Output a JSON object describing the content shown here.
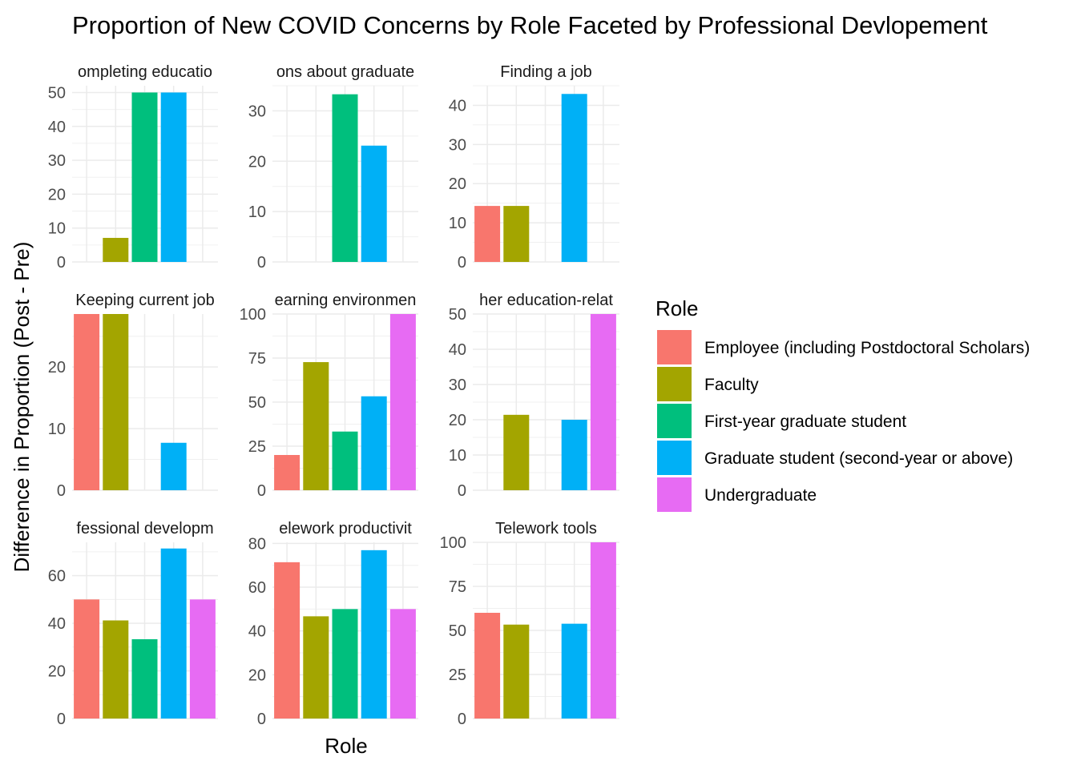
{
  "chart_data": {
    "type": "bar",
    "title": "Proportion of New COVID Concerns by Role Faceted by Professional Devlopement",
    "xlabel": "Role",
    "ylabel": "Difference in Proportion (Post - Pre)",
    "legend": {
      "title": "Role",
      "placement": "right",
      "entries": [
        {
          "name": "Employee (including Postdoctoral Scholars)",
          "color": "#F8766D"
        },
        {
          "name": "Faculty",
          "color": "#A3A500"
        },
        {
          "name": "First-year graduate student",
          "color": "#00BF7D"
        },
        {
          "name": "Graduate student (second-year or above)",
          "color": "#00B0F6"
        },
        {
          "name": "Undergraduate",
          "color": "#E76BF3"
        }
      ]
    },
    "categories": [
      "Employee (including Postdoctoral Scholars)",
      "Faculty",
      "First-year graduate student",
      "Graduate student (second-year or above)",
      "Undergraduate"
    ],
    "grid": true,
    "facets": [
      {
        "strip": "ompleting educatio",
        "ylim": [
          0,
          52
        ],
        "ticks": [
          0,
          10,
          20,
          30,
          40,
          50
        ],
        "values": [
          null,
          7.1,
          50,
          50,
          null
        ]
      },
      {
        "strip": "ons about graduate",
        "ylim": [
          0,
          35
        ],
        "ticks": [
          0,
          10,
          20,
          30
        ],
        "values": [
          null,
          null,
          33.3,
          23.1,
          null
        ]
      },
      {
        "strip": "Finding a job",
        "ylim": [
          0,
          45
        ],
        "ticks": [
          0,
          10,
          20,
          30,
          40
        ],
        "values": [
          14.3,
          14.3,
          null,
          42.9,
          null
        ]
      },
      {
        "strip": "Keeping current job",
        "ylim": [
          0,
          28.6
        ],
        "ticks": [
          0,
          10,
          20
        ],
        "values": [
          28.6,
          28.6,
          null,
          7.7,
          null
        ]
      },
      {
        "strip": "earning environmen",
        "ylim": [
          0,
          100
        ],
        "ticks": [
          0,
          25,
          50,
          75,
          100
        ],
        "values": [
          20,
          72.7,
          33.3,
          53.3,
          100
        ]
      },
      {
        "strip": "her education-relat",
        "ylim": [
          0,
          50
        ],
        "ticks": [
          0,
          10,
          20,
          30,
          40,
          50
        ],
        "values": [
          null,
          21.4,
          null,
          20,
          50
        ]
      },
      {
        "strip": "fessional developm",
        "ylim": [
          0,
          74
        ],
        "ticks": [
          0,
          20,
          40,
          60
        ],
        "values": [
          50,
          41.2,
          33.3,
          71.4,
          50
        ]
      },
      {
        "strip": "elework productivit",
        "ylim": [
          0,
          80.5
        ],
        "ticks": [
          0,
          20,
          40,
          60,
          80
        ],
        "values": [
          71.4,
          46.7,
          50,
          76.9,
          50
        ]
      },
      {
        "strip": "Telework tools",
        "ylim": [
          0,
          100
        ],
        "ticks": [
          0,
          25,
          50,
          75,
          100
        ],
        "values": [
          60,
          53.3,
          null,
          53.8,
          100
        ]
      }
    ]
  }
}
